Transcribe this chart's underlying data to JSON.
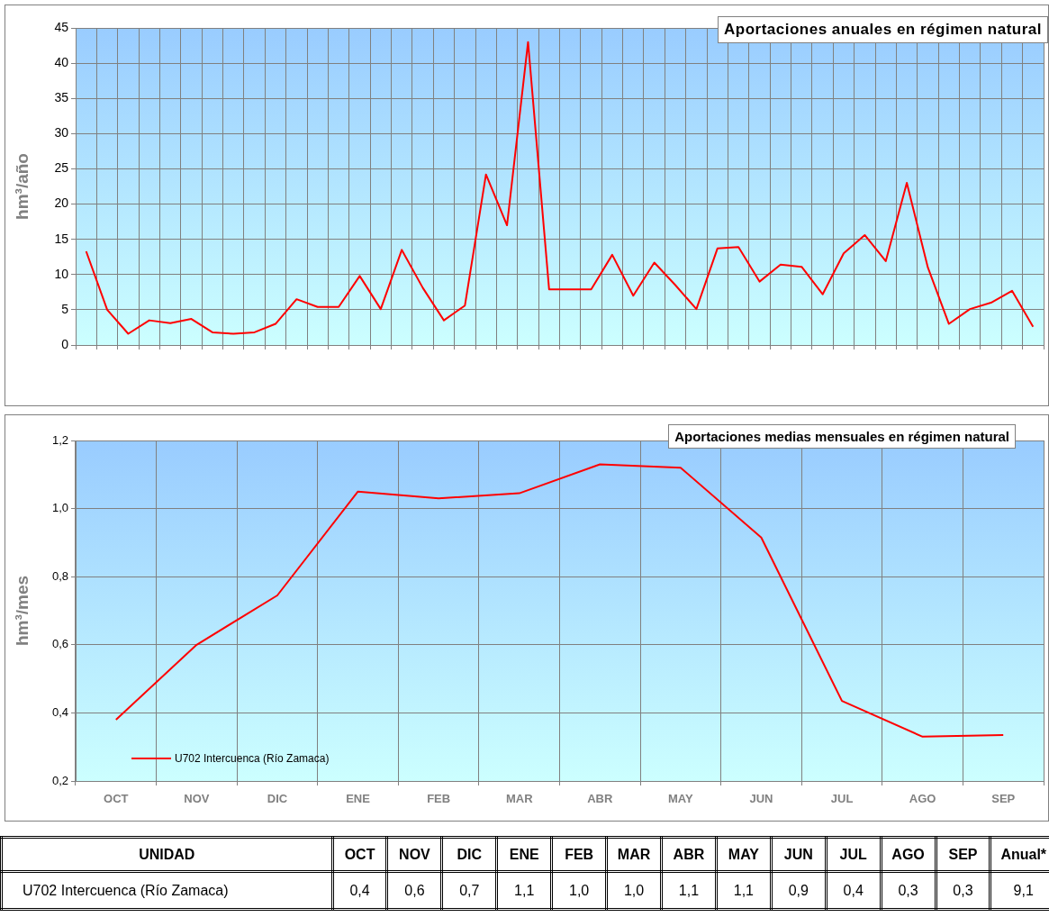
{
  "chart_data": [
    {
      "type": "line",
      "title": "Aportaciones anuales en régimen natural",
      "ylabel": "hm³/año",
      "categories": [
        null,
        null,
        null,
        null,
        null,
        null,
        null,
        null,
        null,
        null,
        null,
        null,
        null,
        null,
        null,
        null,
        null,
        null,
        null,
        null,
        null,
        null,
        null,
        null,
        null,
        null,
        null,
        null,
        null,
        null,
        null,
        null,
        null,
        null,
        null,
        null,
        null,
        null,
        null,
        null,
        null,
        null,
        null,
        null,
        null,
        null
      ],
      "series": [
        {
          "color": "#ff0000",
          "values": [
            13.3,
            5.0,
            1.6,
            3.5,
            3.1,
            3.7,
            1.8,
            1.6,
            1.8,
            3.0,
            6.5,
            5.4,
            5.4,
            9.8,
            5.1,
            13.5,
            8.1,
            3.5,
            5.6,
            24.2,
            17.0,
            43.0,
            7.9,
            7.9,
            7.9,
            12.8,
            7.0,
            11.7,
            8.5,
            5.1,
            13.7,
            13.9,
            9.0,
            11.4,
            11.1,
            7.2,
            13.0,
            15.6,
            11.9,
            23.0,
            11.0,
            3.0,
            5.1,
            6.0,
            7.7,
            2.6
          ]
        }
      ],
      "ylim": [
        0,
        45
      ],
      "yticks": [
        0,
        5,
        10,
        15,
        20,
        25,
        30,
        35,
        40,
        45
      ],
      "grid": true,
      "marker": "none",
      "line_style": "solid",
      "legend": false
    },
    {
      "type": "line",
      "title": "Aportaciones medias mensuales en régimen natural",
      "ylabel": "hm³/mes",
      "categories": [
        "OCT",
        "NOV",
        "DIC",
        "ENE",
        "FEB",
        "MAR",
        "ABR",
        "MAY",
        "JUN",
        "JUL",
        "AGO",
        "SEP"
      ],
      "series": [
        {
          "name": "U702 Intercuenca (Río Zamaca)",
          "color": "#ff0000",
          "values": [
            0.38,
            0.6,
            0.745,
            1.05,
            1.03,
            1.045,
            1.13,
            1.12,
            0.915,
            0.435,
            0.33,
            0.335
          ]
        }
      ],
      "ylim": [
        0.2,
        1.2
      ],
      "yticks": [
        {
          "value": 0.2,
          "label": "0,2"
        },
        {
          "value": 0.4,
          "label": "0,4"
        },
        {
          "value": 0.6,
          "label": "0,6"
        },
        {
          "value": 0.8,
          "label": "0,8"
        },
        {
          "value": 1.0,
          "label": "1,0"
        },
        {
          "value": 1.2,
          "label": "1,2"
        }
      ],
      "grid": true,
      "marker": "none",
      "line_style": "solid",
      "legend": "bottom left"
    },
    {
      "type": "other",
      "annotations": [
        "UNIDAD"
      ],
      "categories": [
        "OCT",
        "NOV",
        "DIC",
        "ENE",
        "FEB",
        "MAR",
        "ABR",
        "MAY",
        "JUN",
        "JUL",
        "AGO",
        "SEP",
        "Anual*"
      ],
      "y_categories": [
        "U702 Intercuenca (Río Zamaca)"
      ],
      "cell_labels": [
        [
          "0,4",
          "0,6",
          "0,7",
          "1,1",
          "1,0",
          "1,0",
          "1,1",
          "1,1",
          "0,9",
          "0,4",
          "0,3",
          "0,3",
          "9,1"
        ]
      ]
    }
  ]
}
